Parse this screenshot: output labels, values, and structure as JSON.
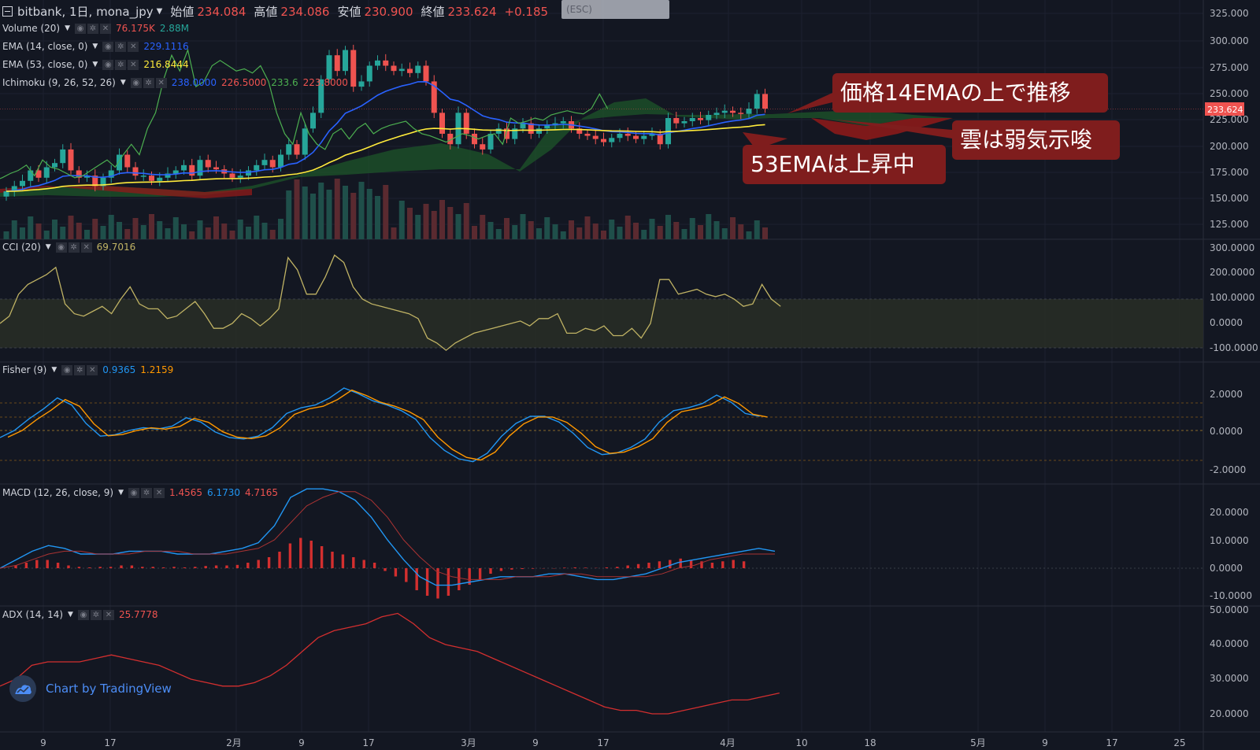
{
  "header": {
    "symbol": "bitbank, 1日, mona_jpy",
    "ohlc": [
      {
        "label": "始値",
        "value": "234.084"
      },
      {
        "label": "高値",
        "value": "234.086"
      },
      {
        "label": "安値",
        "value": "230.900"
      },
      {
        "label": "終値",
        "value": "233.624"
      }
    ],
    "change": "+0.185",
    "esc_text": "(ESC)"
  },
  "legends": {
    "volume": {
      "name": "Volume (20)",
      "values": [
        "76.175K",
        "2.88M"
      ],
      "colors": [
        "#ef5350",
        "#26a69a"
      ]
    },
    "ema14": {
      "name": "EMA (14, close, 0)",
      "values": [
        "229.1116"
      ],
      "colors": [
        "#2962ff"
      ]
    },
    "ema53": {
      "name": "EMA (53, close, 0)",
      "values": [
        "216.8444"
      ],
      "colors": [
        "#ffeb3b"
      ]
    },
    "ichimoku": {
      "name": "Ichimoku (9, 26, 52, 26)",
      "values": [
        "238.0000",
        "226.5000",
        "233.6",
        "",
        "223.8000"
      ],
      "colors": [
        "#2962ff",
        "#ef5350",
        "#4caf50",
        "#4caf50",
        "#ef5350"
      ]
    },
    "cci": {
      "name": "CCI (20)",
      "values": [
        "69.7016"
      ],
      "colors": [
        "#c0b364"
      ]
    },
    "fisher": {
      "name": "Fisher (9)",
      "values": [
        "0.9365",
        "1.2159"
      ],
      "colors": [
        "#2196f3",
        "#ff9800"
      ]
    },
    "macd": {
      "name": "MACD (12, 26, close, 9)",
      "values": [
        "1.4565",
        "6.1730",
        "4.7165"
      ],
      "colors": [
        "#ef5350",
        "#2196f3",
        "#ef5350"
      ]
    },
    "adx": {
      "name": "ADX (14, 14)",
      "values": [
        "25.7778"
      ],
      "colors": [
        "#ef5350"
      ]
    }
  },
  "price_axis": {
    "labels": [
      "325.000",
      "300.000",
      "275.000",
      "250.000",
      "225.000",
      "200.000",
      "175.000",
      "150.000",
      "125.000"
    ],
    "current": "233.624"
  },
  "cci_axis": [
    "300.0000",
    "200.0000",
    "100.0000",
    "0.0000",
    "-100.0000"
  ],
  "fisher_axis": [
    "2.0000",
    "0.0000",
    "-2.0000"
  ],
  "macd_axis": [
    "20.0000",
    "10.0000",
    "0.0000",
    "-10.0000"
  ],
  "adx_axis": [
    "50.0000",
    "40.0000",
    "30.0000",
    "20.0000"
  ],
  "time_axis": [
    "9",
    "17",
    "2月",
    "9",
    "17",
    "3月",
    "9",
    "17",
    "4月",
    "10",
    "18",
    "5月",
    "9",
    "17",
    "25"
  ],
  "annotations": [
    "価格14EMAの上で推移",
    "雲は弱気示唆",
    "53EMAは上昇中"
  ],
  "brand": "Chart by TradingView",
  "colors": {
    "bg": "#131722",
    "up": "#26a69a",
    "down": "#ef5350",
    "callout": "#7f1d1d"
  },
  "chart_data": {
    "type": "line",
    "title": "",
    "xlabel": "",
    "ylabel": "",
    "ylim": [
      125,
      325
    ],
    "close": [
      155,
      160,
      165,
      175,
      168,
      178,
      182,
      195,
      175,
      168,
      170,
      160,
      168,
      175,
      190,
      178,
      170,
      170,
      165,
      168,
      172,
      175,
      180,
      170,
      185,
      178,
      176,
      172,
      168,
      170,
      175,
      180,
      185,
      178,
      190,
      200,
      190,
      215,
      230,
      262,
      285,
      270,
      290,
      255,
      260,
      275,
      280,
      275,
      270,
      272,
      268,
      275,
      260,
      230,
      210,
      200,
      230,
      210,
      200,
      195,
      210,
      215,
      205,
      215,
      220,
      210,
      215,
      218,
      220,
      222,
      215,
      210,
      208,
      205,
      202,
      206,
      210,
      208,
      205,
      208,
      210,
      200,
      225,
      220,
      222,
      225,
      223,
      228,
      230,
      232,
      230,
      229,
      234,
      248,
      234
    ]
  }
}
